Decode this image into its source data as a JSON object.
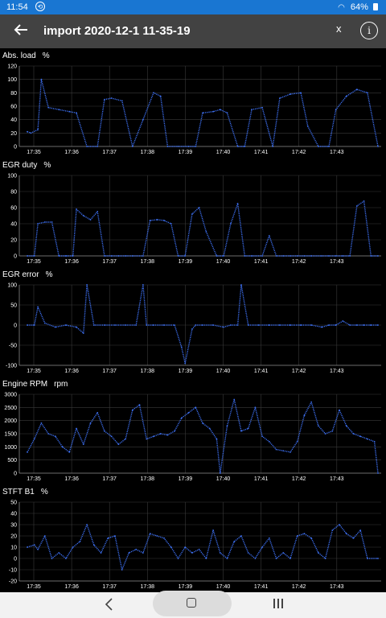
{
  "status_bar": {
    "time": "11:54",
    "notification_icon": "sync-icon",
    "battery": "64%"
  },
  "app_bar": {
    "title": "import 2020-12-1 11-35-19",
    "close_label": "x",
    "info_label": "i"
  },
  "colors": {
    "trace": "#3d6ff0",
    "grid": "#3a3a3a",
    "appbar": "#424242",
    "statusbar": "#1976d2"
  },
  "time_ticks": [
    "17:35",
    "17:36",
    "17:37",
    "17:38",
    "17:39",
    "17:40",
    "17:41",
    "17:42",
    "17:43"
  ],
  "chart_data": [
    {
      "type": "line",
      "title": "Abs. load",
      "unit": "%",
      "ylim": [
        0,
        120
      ],
      "yticks": [
        0,
        20,
        40,
        60,
        80,
        100,
        120
      ],
      "x_range": [
        "17:34:50",
        "17:43:15"
      ],
      "series": [
        {
          "x": [
            0,
            1,
            3,
            4,
            6,
            9,
            12,
            14,
            17,
            20,
            22,
            24,
            27,
            30,
            33,
            36,
            38,
            40,
            43,
            46,
            48,
            50,
            53,
            55,
            57,
            60,
            62,
            64,
            67,
            70,
            72,
            75,
            78,
            80,
            83,
            86,
            88,
            91,
            94,
            97,
            100
          ],
          "values": [
            22,
            20,
            25,
            100,
            58,
            55,
            52,
            50,
            0,
            0,
            70,
            72,
            68,
            0,
            40,
            80,
            75,
            0,
            0,
            0,
            0,
            50,
            52,
            55,
            50,
            0,
            0,
            55,
            58,
            0,
            72,
            78,
            80,
            30,
            0,
            0,
            55,
            75,
            85,
            80,
            0
          ]
        }
      ]
    },
    {
      "type": "line",
      "title": "EGR duty",
      "unit": "%",
      "ylim": [
        0,
        100
      ],
      "yticks": [
        0,
        20,
        40,
        60,
        80,
        100
      ],
      "x_range": [
        "17:34:50",
        "17:43:15"
      ],
      "series": [
        {
          "x": [
            0,
            2,
            3,
            5,
            7,
            9,
            11,
            13,
            14,
            16,
            18,
            20,
            22,
            24,
            26,
            28,
            30,
            33,
            35,
            37,
            39,
            41,
            43,
            45,
            47,
            49,
            51,
            54,
            56,
            58,
            60,
            62,
            64,
            67,
            69,
            71,
            73,
            75,
            77,
            79,
            81,
            84,
            86,
            88,
            90,
            92,
            94,
            96,
            98,
            100
          ],
          "values": [
            0,
            0,
            40,
            42,
            42,
            0,
            0,
            0,
            58,
            50,
            45,
            55,
            0,
            0,
            0,
            0,
            0,
            0,
            44,
            45,
            44,
            40,
            0,
            0,
            52,
            60,
            30,
            0,
            0,
            40,
            65,
            0,
            0,
            0,
            25,
            0,
            0,
            0,
            0,
            0,
            0,
            0,
            0,
            0,
            0,
            0,
            62,
            68,
            0,
            0
          ]
        }
      ]
    },
    {
      "type": "line",
      "title": "EGR error",
      "unit": "%",
      "ylim": [
        -100,
        100
      ],
      "yticks": [
        -100,
        -50,
        0,
        50,
        100
      ],
      "x_range": [
        "17:34:50",
        "17:43:15"
      ],
      "series": [
        {
          "x": [
            0,
            2,
            3,
            5,
            8,
            11,
            14,
            16,
            17,
            19,
            22,
            25,
            28,
            31,
            33,
            34,
            36,
            39,
            42,
            44,
            45,
            47,
            48,
            50,
            53,
            56,
            58,
            60,
            61,
            63,
            66,
            69,
            72,
            75,
            78,
            81,
            84,
            86,
            88,
            90,
            92,
            94,
            96,
            98,
            100
          ],
          "values": [
            0,
            0,
            45,
            5,
            -5,
            0,
            -5,
            -20,
            100,
            0,
            0,
            0,
            0,
            0,
            100,
            0,
            0,
            0,
            0,
            -55,
            -95,
            -10,
            0,
            0,
            0,
            -5,
            0,
            0,
            100,
            0,
            0,
            0,
            0,
            0,
            0,
            0,
            -5,
            0,
            0,
            10,
            0,
            0,
            0,
            0,
            0
          ]
        }
      ]
    },
    {
      "type": "line",
      "title": "Engine RPM",
      "unit": "rpm",
      "ylim": [
        0,
        3000
      ],
      "yticks": [
        0,
        500,
        1000,
        1500,
        2000,
        2500,
        3000
      ],
      "x_range": [
        "17:34:50",
        "17:43:15"
      ],
      "series": [
        {
          "x": [
            0,
            2,
            4,
            6,
            8,
            10,
            12,
            14,
            16,
            18,
            20,
            22,
            24,
            26,
            28,
            30,
            32,
            34,
            36,
            38,
            40,
            42,
            44,
            46,
            48,
            50,
            52,
            54,
            55,
            57,
            59,
            61,
            63,
            65,
            67,
            69,
            71,
            73,
            75,
            77,
            79,
            81,
            83,
            85,
            87,
            89,
            91,
            93,
            95,
            97,
            99,
            100
          ],
          "values": [
            800,
            1300,
            1900,
            1500,
            1400,
            1000,
            800,
            1700,
            1100,
            1900,
            2300,
            1600,
            1400,
            1100,
            1300,
            2400,
            2600,
            1300,
            1400,
            1500,
            1450,
            1600,
            2100,
            2300,
            2500,
            1900,
            1700,
            1300,
            0,
            1800,
            2800,
            1600,
            1700,
            2500,
            1400,
            1200,
            900,
            850,
            800,
            1200,
            2200,
            2700,
            1800,
            1500,
            1600,
            2400,
            1800,
            1500,
            1400,
            1300,
            1200,
            0
          ]
        }
      ]
    },
    {
      "type": "line",
      "title": "STFT B1",
      "unit": "%",
      "ylim": [
        -20,
        50
      ],
      "yticks": [
        -20,
        -10,
        0,
        10,
        20,
        30,
        40,
        50
      ],
      "x_range": [
        "17:34:50",
        "17:43:15"
      ],
      "series": [
        {
          "x": [
            0,
            2,
            3,
            5,
            7,
            9,
            11,
            13,
            15,
            17,
            19,
            21,
            23,
            25,
            27,
            29,
            31,
            33,
            35,
            37,
            39,
            41,
            43,
            45,
            47,
            49,
            51,
            53,
            55,
            57,
            59,
            61,
            63,
            65,
            67,
            69,
            71,
            73,
            75,
            77,
            79,
            81,
            83,
            85,
            87,
            89,
            91,
            93,
            95,
            97,
            100
          ],
          "values": [
            10,
            12,
            8,
            20,
            0,
            5,
            0,
            10,
            15,
            30,
            12,
            5,
            18,
            20,
            -10,
            5,
            8,
            5,
            22,
            20,
            18,
            10,
            0,
            10,
            5,
            8,
            0,
            25,
            5,
            0,
            15,
            20,
            5,
            0,
            10,
            18,
            0,
            5,
            0,
            20,
            22,
            18,
            5,
            0,
            25,
            30,
            22,
            18,
            25,
            0,
            0
          ]
        }
      ]
    }
  ],
  "nav_bar": {
    "back_icon": "back-arrow-icon",
    "home_icon": "home-icon",
    "recents_icon": "recents-icon"
  }
}
